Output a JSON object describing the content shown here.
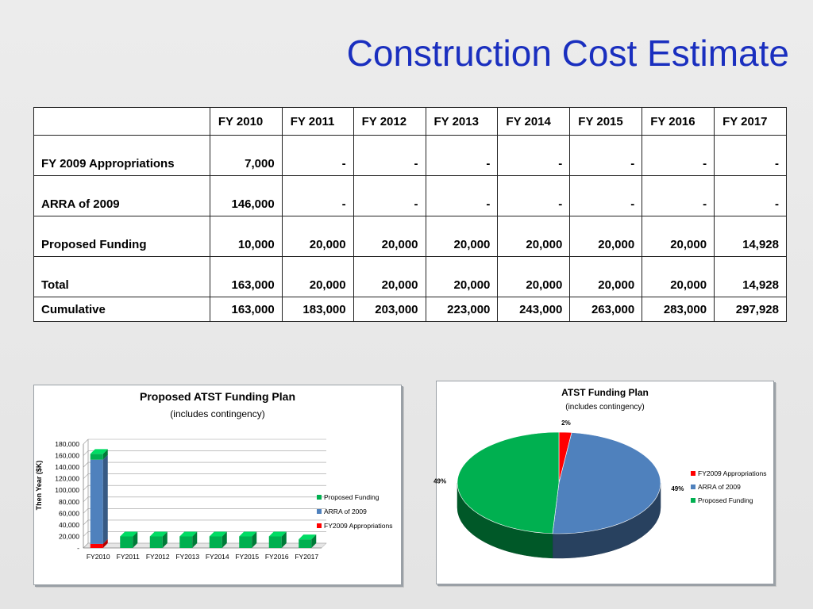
{
  "slide": {
    "title": "Construction Cost Estimate"
  },
  "table": {
    "columns": [
      "",
      "FY 2010",
      "FY 2011",
      "FY 2012",
      "FY 2013",
      "FY 2014",
      "FY 2015",
      "FY 2016",
      "FY 2017"
    ],
    "rows": [
      {
        "label": "FY 2009 Appropriations",
        "cells": [
          "7,000",
          "-",
          "-",
          "-",
          "-",
          "-",
          "-",
          "-"
        ]
      },
      {
        "label": "ARRA of 2009",
        "cells": [
          "146,000",
          "-",
          "-",
          "-",
          "-",
          "-",
          "-",
          "-"
        ]
      },
      {
        "label": "Proposed Funding",
        "cells": [
          "10,000",
          "20,000",
          "20,000",
          "20,000",
          "20,000",
          "20,000",
          "20,000",
          "14,928"
        ]
      },
      {
        "label": "Total",
        "cells": [
          "163,000",
          "20,000",
          "20,000",
          "20,000",
          "20,000",
          "20,000",
          "20,000",
          "14,928"
        ]
      },
      {
        "label": "Cumulative",
        "cells": [
          "163,000",
          "183,000",
          "203,000",
          "223,000",
          "243,000",
          "263,000",
          "283,000",
          "297,928"
        ]
      }
    ]
  },
  "chart_data": [
    {
      "type": "bar",
      "stacked": true,
      "title": "Proposed ATST Funding Plan",
      "subtitle": "(includes contingency)",
      "xlabel": "",
      "ylabel": "Then Year ($K)",
      "ylim": [
        0,
        180000
      ],
      "yticks": [
        "-",
        "20,000",
        "40,000",
        "60,000",
        "80,000",
        "100,000",
        "120,000",
        "140,000",
        "160,000",
        "180,000"
      ],
      "categories": [
        "FY2010",
        "FY2011",
        "FY2012",
        "FY2013",
        "FY2014",
        "FY2015",
        "FY2016",
        "FY2017"
      ],
      "series": [
        {
          "name": "FY2009 Appropriations",
          "color": "#ff0000",
          "values": [
            7000,
            0,
            0,
            0,
            0,
            0,
            0,
            0
          ]
        },
        {
          "name": "ARRA of 2009",
          "color": "#4f81bd",
          "values": [
            146000,
            0,
            0,
            0,
            0,
            0,
            0,
            0
          ]
        },
        {
          "name": "Proposed Funding",
          "color": "#00b050",
          "values": [
            10000,
            20000,
            20000,
            20000,
            20000,
            20000,
            20000,
            14928
          ]
        }
      ],
      "legend": [
        "Proposed Funding",
        "ARRA of 2009",
        "FY2009 Appropriations"
      ],
      "legend_position": "right",
      "grid": true
    },
    {
      "type": "pie",
      "title": "ATST Funding Plan",
      "subtitle": "(includes contingency)",
      "slices": [
        {
          "name": "FY2009 Appropriations",
          "color": "#ff0000",
          "percent": 2,
          "label": "2%"
        },
        {
          "name": "ARRA of 2009",
          "color": "#4f81bd",
          "percent": 49,
          "label": "49%"
        },
        {
          "name": "Proposed Funding",
          "color": "#00b050",
          "percent": 49,
          "label": "49%"
        }
      ],
      "legend": [
        "FY2009 Appropriations",
        "ARRA of 2009",
        "Proposed Funding"
      ],
      "legend_position": "right"
    }
  ]
}
